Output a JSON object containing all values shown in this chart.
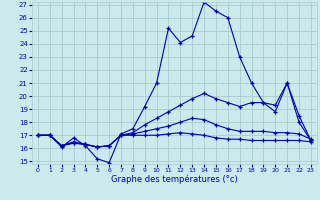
{
  "bg_color": "#cce9ec",
  "line_color": "#0000bb",
  "grid_color": "#aacccc",
  "xlabel": "Graphe des températures (°c)",
  "xlim": [
    -0.5,
    23.5
  ],
  "ylim": [
    14.8,
    27.2
  ],
  "xticks": [
    0,
    1,
    2,
    3,
    4,
    5,
    6,
    7,
    8,
    9,
    10,
    11,
    12,
    13,
    14,
    15,
    16,
    17,
    18,
    19,
    20,
    21,
    22,
    23
  ],
  "yticks": [
    15,
    16,
    17,
    18,
    19,
    20,
    21,
    22,
    23,
    24,
    25,
    26,
    27
  ],
  "series": [
    {
      "x": [
        0,
        1,
        2,
        3,
        4,
        5,
        6,
        7,
        8,
        9,
        10,
        11,
        12,
        13,
        14,
        15,
        16,
        17,
        18,
        19,
        20,
        21,
        22,
        23
      ],
      "y": [
        17.0,
        17.0,
        16.1,
        16.8,
        16.2,
        15.2,
        14.9,
        17.1,
        17.5,
        19.2,
        21.0,
        25.2,
        24.1,
        24.6,
        27.2,
        26.5,
        26.0,
        23.0,
        21.0,
        19.5,
        18.8,
        21.0,
        18.0,
        16.6
      ]
    },
    {
      "x": [
        0,
        1,
        2,
        3,
        4,
        5,
        6,
        7,
        8,
        9,
        10,
        11,
        12,
        13,
        14,
        15,
        16,
        17,
        18,
        19,
        20,
        21,
        22,
        23
      ],
      "y": [
        17.0,
        17.0,
        16.2,
        16.5,
        16.3,
        16.1,
        16.2,
        17.0,
        17.2,
        17.8,
        18.3,
        18.8,
        19.3,
        19.8,
        20.2,
        19.8,
        19.5,
        19.2,
        19.5,
        19.5,
        19.3,
        21.0,
        18.5,
        16.6
      ]
    },
    {
      "x": [
        0,
        1,
        2,
        3,
        4,
        5,
        6,
        7,
        8,
        9,
        10,
        11,
        12,
        13,
        14,
        15,
        16,
        17,
        18,
        19,
        20,
        21,
        22,
        23
      ],
      "y": [
        17.0,
        17.0,
        16.2,
        16.4,
        16.3,
        16.1,
        16.2,
        17.0,
        17.1,
        17.3,
        17.5,
        17.7,
        18.0,
        18.3,
        18.2,
        17.8,
        17.5,
        17.3,
        17.3,
        17.3,
        17.2,
        17.2,
        17.1,
        16.7
      ]
    },
    {
      "x": [
        0,
        1,
        2,
        3,
        4,
        5,
        6,
        7,
        8,
        9,
        10,
        11,
        12,
        13,
        14,
        15,
        16,
        17,
        18,
        19,
        20,
        21,
        22,
        23
      ],
      "y": [
        17.0,
        17.0,
        16.2,
        16.4,
        16.3,
        16.1,
        16.2,
        17.0,
        17.0,
        17.0,
        17.0,
        17.1,
        17.2,
        17.1,
        17.0,
        16.8,
        16.7,
        16.7,
        16.6,
        16.6,
        16.6,
        16.6,
        16.6,
        16.5
      ]
    }
  ]
}
